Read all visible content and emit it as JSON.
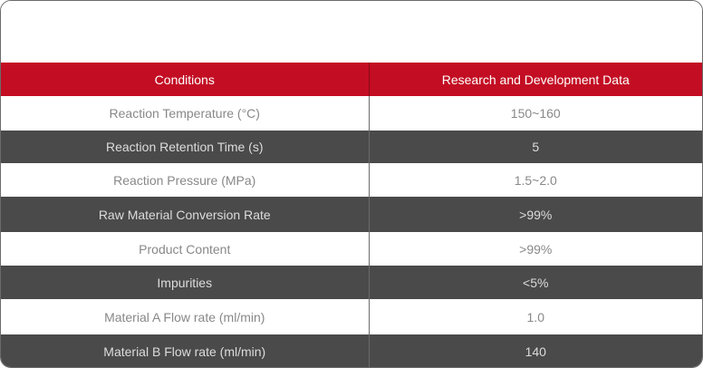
{
  "table": {
    "headers": [
      "Conditions",
      "Research and Development Data"
    ],
    "rows": [
      [
        "Reaction Temperature (°C)",
        "150~160"
      ],
      [
        "Reaction Retention Time (s)",
        "5"
      ],
      [
        "Reaction Pressure (MPa)",
        "1.5~2.0"
      ],
      [
        "Raw Material Conversion Rate",
        ">99%"
      ],
      [
        "Product Content",
        ">99%"
      ],
      [
        "Impurities",
        "<5%"
      ],
      [
        "Material A Flow rate (ml/min)",
        "1.0"
      ],
      [
        "Material B Flow rate (ml/min)",
        "140"
      ]
    ]
  },
  "colors": {
    "header_bg": "#c30d23",
    "dark_row_bg": "#4a4a4a",
    "light_row_bg": "#ffffff"
  }
}
